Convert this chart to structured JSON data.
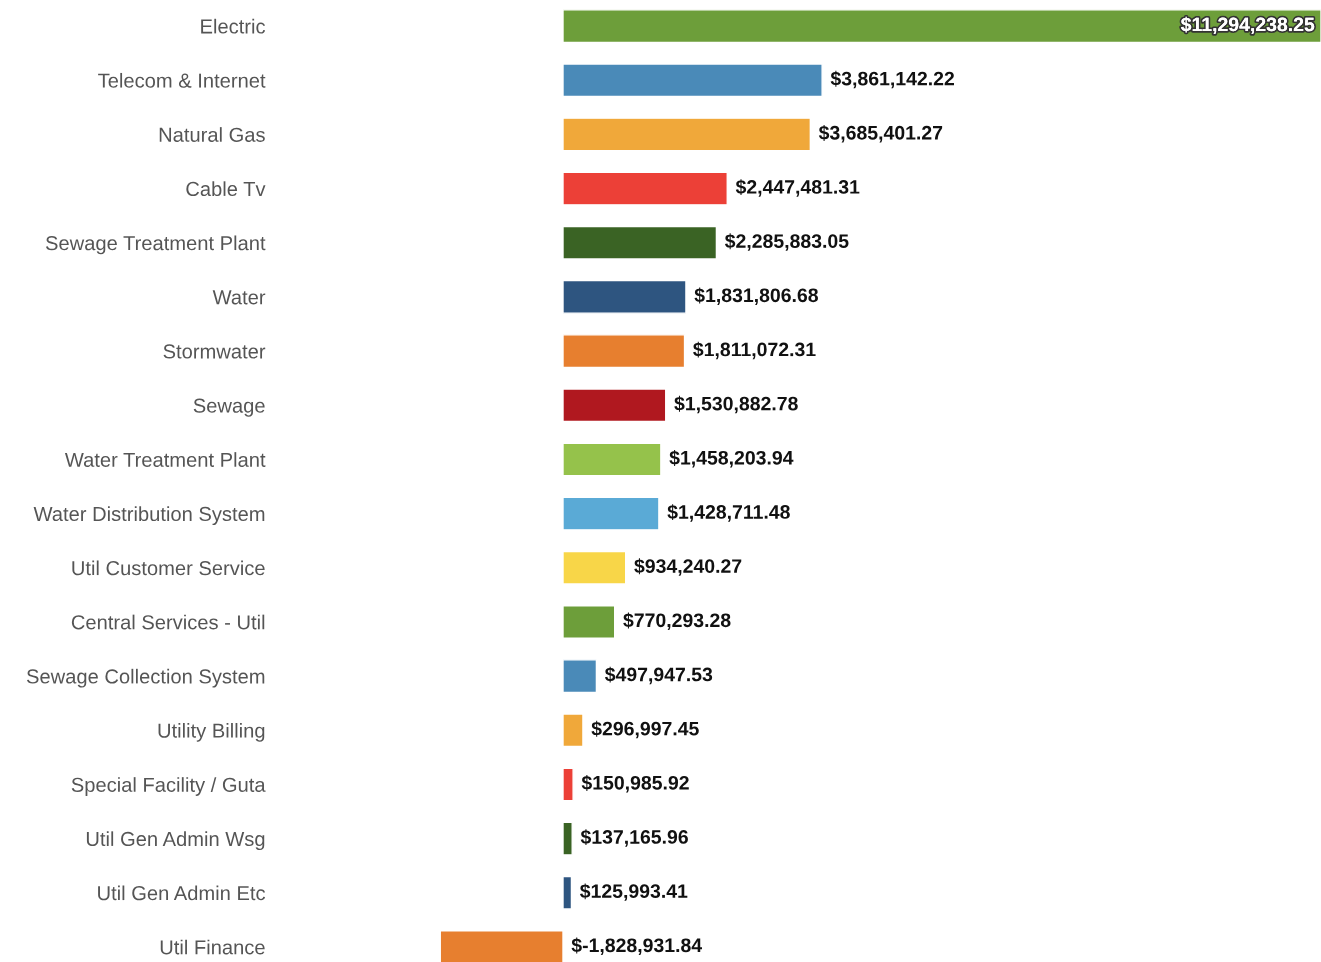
{
  "chart_data": {
    "type": "bar",
    "orientation": "horizontal",
    "categories": [
      "Electric",
      "Telecom & Internet",
      "Natural Gas",
      "Cable Tv",
      "Sewage Treatment Plant",
      "Water",
      "Stormwater",
      "Sewage",
      "Water Treatment Plant",
      "Water Distribution System",
      "Util Customer Service",
      "Central Services - Util",
      "Sewage Collection System",
      "Utility Billing",
      "Special Facility / Guta",
      "Util Gen Admin Wsg",
      "Util Gen Admin Etc",
      "Util Finance"
    ],
    "values": [
      11294238.25,
      3861142.22,
      3685401.27,
      2447481.31,
      2285883.05,
      1831806.68,
      1811072.31,
      1530882.78,
      1458203.94,
      1428711.48,
      934240.27,
      770293.28,
      497947.53,
      296997.45,
      150985.92,
      137165.96,
      125993.41,
      -1828931.84
    ],
    "value_labels": [
      "$11,294,238.25",
      "$3,861,142.22",
      "$3,685,401.27",
      "$2,447,481.31",
      "$2,285,883.05",
      "$1,831,806.68",
      "$1,811,072.31",
      "$1,530,882.78",
      "$1,458,203.94",
      "$1,428,711.48",
      "$934,240.27",
      "$770,293.28",
      "$497,947.53",
      "$296,997.45",
      "$150,985.92",
      "$137,165.96",
      "$125,993.41",
      "$-1,828,931.84"
    ],
    "colors": [
      "#6d9e3a",
      "#4a8ab8",
      "#f0a83a",
      "#ec4037",
      "#3a6324",
      "#2e5580",
      "#e77f2f",
      "#b0181f",
      "#95c24b",
      "#5aaad6",
      "#f8d648",
      "#6d9e3a",
      "#4a8ab8",
      "#f0a83a",
      "#ec4037",
      "#3a6324",
      "#2e5580",
      "#e77f2f"
    ],
    "grid": false,
    "legend": false
  }
}
